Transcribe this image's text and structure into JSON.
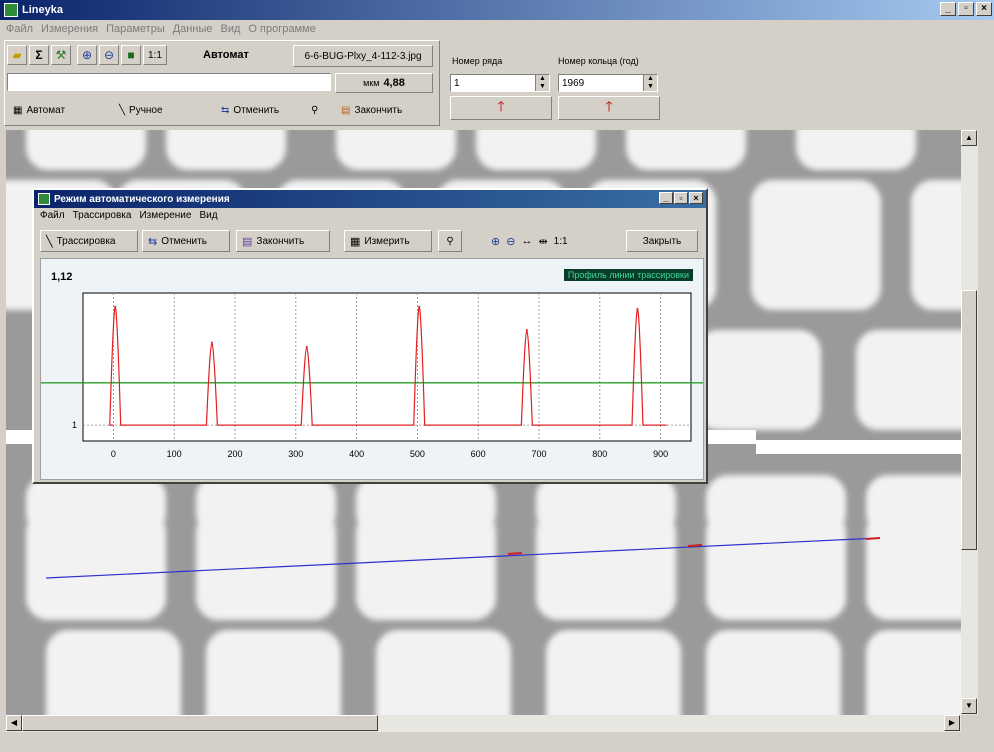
{
  "app": {
    "title": "Lineyka"
  },
  "menu": [
    "Файл",
    "Измерения",
    "Параметры",
    "Данные",
    "Вид",
    "О программе"
  ],
  "toolbar": {
    "zoom_ratio": "1:1",
    "mode_label": "Автомат",
    "filename": "6-6-BUG-Plxy_4-112-3.jpg",
    "unit": "мкм",
    "value": "4,88",
    "buttons": {
      "auto": "Автомат",
      "manual": "Ручное",
      "cancel": "Отменить",
      "finish": "Закончить"
    }
  },
  "ring": {
    "row_label": "Номер ряда",
    "row_value": "1",
    "ring_label": "Номер кольца (год)",
    "ring_value": "1969"
  },
  "dialog": {
    "title": "Режим автоматического измерения",
    "menu": [
      "Файл",
      "Трассировка",
      "Измерение",
      "Вид"
    ],
    "toolbar": {
      "trace": "Трассировка",
      "cancel": "Отменить",
      "finish": "Закончить",
      "measure": "Измерить",
      "ratio": "1:1",
      "close": "Закрыть"
    },
    "status_label": "Профиль линии трассировки",
    "y_top_label": "1,12"
  },
  "chart_data": {
    "type": "line",
    "xlim": [
      -50,
      950
    ],
    "x_ticks": [
      0,
      100,
      200,
      300,
      400,
      500,
      600,
      700,
      800,
      900
    ],
    "y_ticks": [
      1
    ],
    "threshold": 1.04,
    "baseline": 1,
    "peaks": [
      {
        "x": 3,
        "y": 1.112
      },
      {
        "x": 162,
        "y": 1.078
      },
      {
        "x": 318,
        "y": 1.074
      },
      {
        "x": 503,
        "y": 1.112
      },
      {
        "x": 680,
        "y": 1.09
      },
      {
        "x": 862,
        "y": 1.11
      }
    ],
    "grid": true,
    "colors": {
      "profile": "#e02020",
      "threshold": "#2aa02a",
      "grid": "#888888"
    }
  },
  "colors": {
    "accent": "#0a246a",
    "face": "#d4d0c8",
    "arrow": "#c00000"
  }
}
